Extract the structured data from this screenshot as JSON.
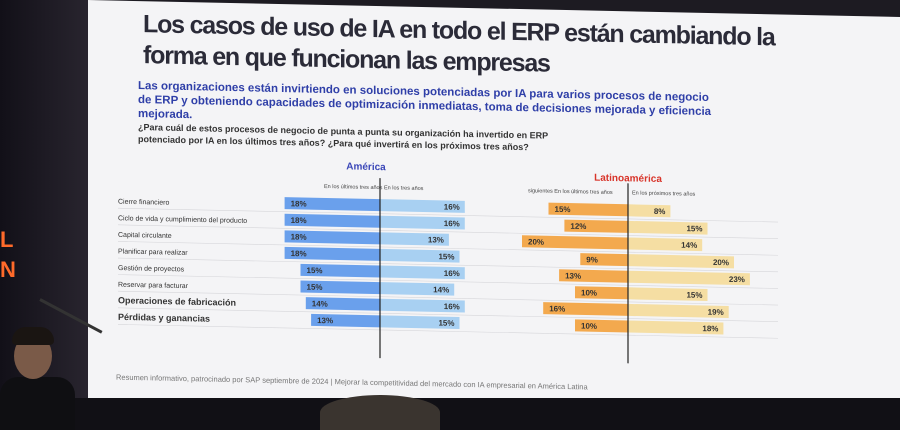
{
  "title": "Los casos de uso de IA en todo el ERP están cambiando la forma en que funcionan las empresas",
  "subtitle": "Las organizaciones están invirtiendo en soluciones potenciadas por IA para varios procesos de negocio de ERP y obteniendo capacidades de optimización inmediatas, toma de decisiones mejorada y eficiencia mejorada.",
  "question": "¿Para cuál de estos procesos de negocio de punta a punta su organización ha invertido en ERP potenciado por IA en los últimos tres años? ¿Para qué invertirá en los próximos tres años?",
  "footer": "Resumen informativo, patrocinado por SAP septiembre de 2024 | Mejorar la competitividad del mercado con IA empresarial en América Latina",
  "chart_data": {
    "type": "bar",
    "categories": [
      "Cierre financiero",
      "Ciclo de vida y cumplimiento del producto",
      "Capital circulante",
      "Planificar para realizar",
      "Gestión de proyectos",
      "Reservar para facturar",
      "Operaciones de fabricación",
      "Pérdidas y ganancias"
    ],
    "groups": [
      {
        "name": "América",
        "series": [
          {
            "name": "En los últimos tres años",
            "values": [
              18,
              18,
              18,
              18,
              15,
              15,
              14,
              13
            ],
            "color": "#6aa0ec"
          },
          {
            "name": "En los tres años",
            "values": [
              16,
              16,
              13,
              15,
              16,
              14,
              16,
              15
            ],
            "color": "#a8d0f2"
          }
        ]
      },
      {
        "name": "Latinoamérica",
        "series": [
          {
            "name": "siguientes En los últimos tres años",
            "values": [
              15,
              12,
              20,
              9,
              13,
              10,
              16,
              10
            ],
            "color": "#f3a94e"
          },
          {
            "name": "En los próximos tres años",
            "values": [
              8,
              15,
              14,
              20,
              23,
              15,
              19,
              18
            ],
            "color": "#f5dea3"
          }
        ]
      }
    ],
    "value_format": "%"
  }
}
